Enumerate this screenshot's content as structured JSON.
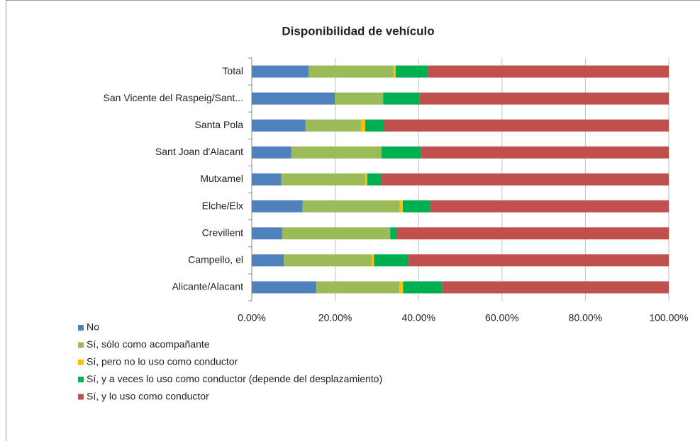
{
  "chart_data": {
    "type": "stacked-bar-horizontal",
    "title": "Disponibilidad de vehículo",
    "categories": [
      "Total",
      "San Vicente del Raspeig/Sant...",
      "Santa Pola",
      "Sant Joan d'Alacant",
      "Mutxamel",
      "Elche/Elx",
      "Crevillent",
      "Campello, el",
      "Alicante/Alacant"
    ],
    "series": [
      {
        "name": "No",
        "color": "#4f81bd",
        "values": [
          13.6,
          19.9,
          12.9,
          9.5,
          7.1,
          12.2,
          7.3,
          7.7,
          15.5
        ]
      },
      {
        "name": "Sí, sólo como acompañante",
        "color": "#9bbb59",
        "values": [
          20.4,
          11.6,
          13.4,
          21.6,
          20.1,
          23.3,
          25.9,
          21.1,
          19.9
        ]
      },
      {
        "name": "Sí, pero no lo uso como conductor",
        "color": "#ffc000",
        "values": [
          0.5,
          0,
          0.9,
          0,
          0.5,
          0.7,
          0,
          0.5,
          0.9
        ]
      },
      {
        "name": "Sí, y a veces lo uso como conductor (depende del desplazamiento)",
        "color": "#00b050",
        "values": [
          7.8,
          8.7,
          4.6,
          9.4,
          3.4,
          6.6,
          1.5,
          8.3,
          9.4
        ]
      },
      {
        "name": "Sí, y lo uso como conductor",
        "color": "#c0504d",
        "values": [
          57.7,
          59.8,
          68.2,
          59.5,
          68.9,
          57.2,
          65.3,
          62.4,
          54.3
        ]
      }
    ],
    "xlim": [
      0,
      100
    ],
    "xticks": [
      {
        "value": 0,
        "label": "0.00%"
      },
      {
        "value": 20,
        "label": "20.00%"
      },
      {
        "value": 40,
        "label": "40.00%"
      },
      {
        "value": 60,
        "label": "60.00%"
      },
      {
        "value": 80,
        "label": "80.00%"
      },
      {
        "value": 100,
        "label": "100.00%"
      }
    ],
    "grid": true,
    "legend": "bottom"
  }
}
